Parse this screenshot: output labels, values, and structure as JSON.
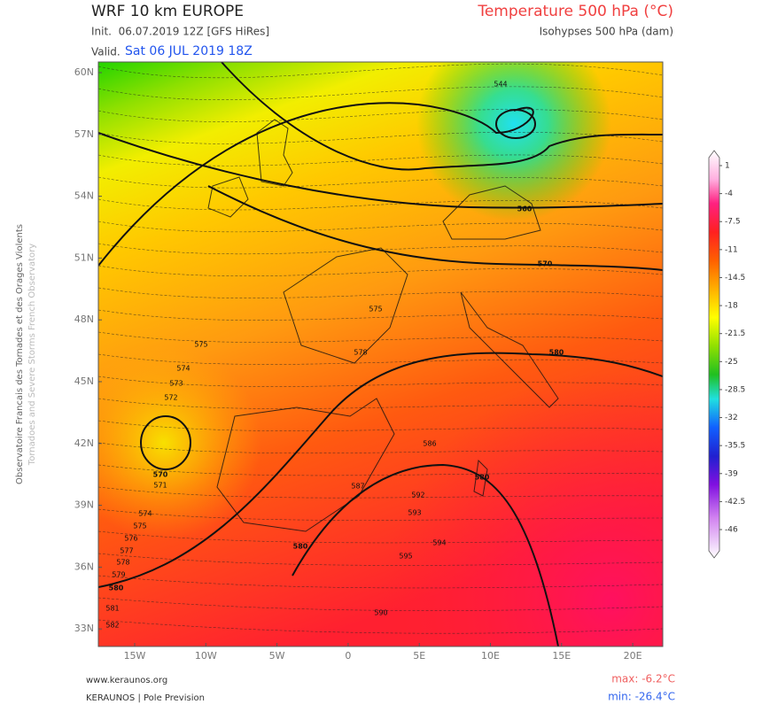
{
  "header": {
    "title": "WRF 10 km EUROPE",
    "init": "Init.  06.07.2019 12Z [GFS HiRes]",
    "valid_label": "Valid.",
    "valid": "Sat 06 JUL 2019 18Z",
    "product": "Temperature 500 hPa (°C)",
    "subtitle": "Isohypses 500 hPa (dam)"
  },
  "side_text": [
    "Observatoire Francais des Tornades et des Orages Violents",
    "Tornadoes and Severe Storms French Observatory"
  ],
  "map": {
    "lat_labels": [
      "60N",
      "57N",
      "54N",
      "51N",
      "48N",
      "45N",
      "42N",
      "39N",
      "36N",
      "33N"
    ],
    "lon_labels": [
      "15W",
      "10W",
      "5W",
      "0",
      "5E",
      "10E",
      "15E",
      "20E"
    ],
    "contour_labels": [
      "570",
      "571",
      "572",
      "573",
      "574",
      "575",
      "574",
      "575",
      "576",
      "577",
      "578",
      "579",
      "580",
      "581",
      "582",
      "560",
      "570",
      "580",
      "580",
      "580",
      "575",
      "578",
      "586",
      "587",
      "544",
      "592",
      "593",
      "594",
      "595",
      "590"
    ]
  },
  "colorbar": {
    "labels": [
      "1",
      "-4",
      "-7.5",
      "-11",
      "-14.5",
      "-18",
      "-21.5",
      "-25",
      "-28.5",
      "-32",
      "-35.5",
      "-39",
      "-42.5",
      "-46"
    ]
  },
  "footer": {
    "website": "www.keraunos.org",
    "credit": "KERAUNOS | Pole Prevision",
    "max": "max: -6.2°C",
    "min": "min: -26.4°C"
  }
}
